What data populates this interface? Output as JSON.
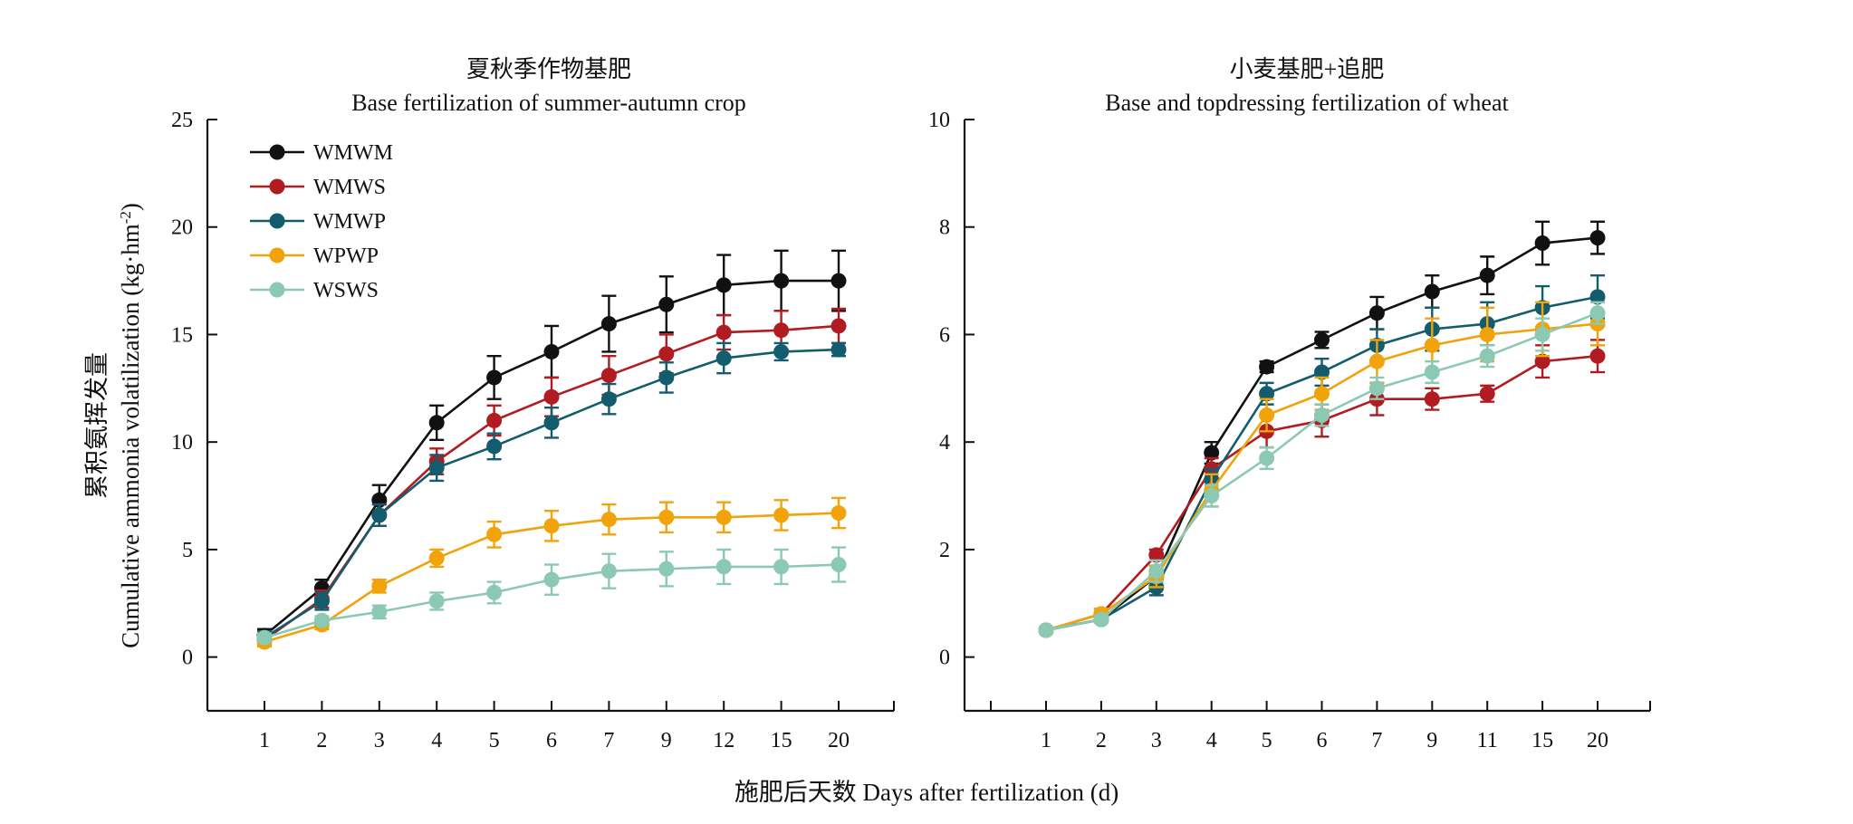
{
  "figure": {
    "xlabel": "施肥后天数 Days after fertilization (d)",
    "ylabel_cn": "累积氨挥发量",
    "ylabel_en_pre": "Cumulative ammonia volatilization (kg·hm",
    "ylabel_en_sup": "-2",
    "ylabel_en_post": ")"
  },
  "chart_data": [
    {
      "type": "line",
      "title_cn": "夏秋季作物基肥",
      "title_en": "Base fertilization of summer-autumn crop",
      "categories": [
        "1",
        "2",
        "3",
        "4",
        "5",
        "6",
        "7",
        "9",
        "12",
        "15",
        "20"
      ],
      "ylim": [
        -2.5,
        25
      ],
      "yticks": [
        0,
        5,
        10,
        15,
        20,
        25
      ],
      "legend": "top-left",
      "series": [
        {
          "name": "WMWM",
          "color": "#111111",
          "values": [
            1.0,
            3.2,
            7.3,
            10.9,
            13.0,
            14.2,
            15.5,
            16.4,
            17.3,
            17.5,
            17.5
          ],
          "errors": [
            0.3,
            0.4,
            0.7,
            0.8,
            1.0,
            1.2,
            1.3,
            1.3,
            1.4,
            1.4,
            1.4
          ]
        },
        {
          "name": "WMWS",
          "color": "#B01C22",
          "values": [
            0.8,
            2.7,
            6.6,
            9.1,
            11.0,
            12.1,
            13.1,
            14.1,
            15.1,
            15.2,
            15.4
          ],
          "errors": [
            0.3,
            0.4,
            0.5,
            0.6,
            0.7,
            0.9,
            0.9,
            0.9,
            0.8,
            0.9,
            0.8
          ]
        },
        {
          "name": "WMWP",
          "color": "#135C6E",
          "values": [
            0.9,
            2.6,
            6.6,
            8.8,
            9.8,
            10.9,
            12.0,
            13.0,
            13.9,
            14.2,
            14.3
          ],
          "errors": [
            0.3,
            0.4,
            0.5,
            0.6,
            0.6,
            0.7,
            0.7,
            0.7,
            0.7,
            0.4,
            0.3
          ]
        },
        {
          "name": "WPWP",
          "color": "#F0A30A",
          "values": [
            0.7,
            1.5,
            3.3,
            4.6,
            5.7,
            6.1,
            6.4,
            6.5,
            6.5,
            6.6,
            6.7
          ],
          "errors": [
            0.2,
            0.2,
            0.3,
            0.4,
            0.6,
            0.7,
            0.7,
            0.7,
            0.7,
            0.7,
            0.7
          ]
        },
        {
          "name": "WSWS",
          "color": "#8CC9B3",
          "values": [
            0.9,
            1.7,
            2.1,
            2.6,
            3.0,
            3.6,
            4.0,
            4.1,
            4.2,
            4.2,
            4.3
          ],
          "errors": [
            0.2,
            0.2,
            0.3,
            0.4,
            0.5,
            0.7,
            0.8,
            0.8,
            0.8,
            0.8,
            0.8
          ]
        }
      ]
    },
    {
      "type": "line",
      "title_cn": "小麦基肥+追肥",
      "title_en": "Base and topdressing fertilization of wheat",
      "categories": [
        "1",
        "2",
        "3",
        "4",
        "5",
        "6",
        "7",
        "9",
        "11",
        "15",
        "20"
      ],
      "ylim": [
        -1,
        10
      ],
      "yticks": [
        0,
        2,
        4,
        6,
        8,
        10
      ],
      "series": [
        {
          "name": "WMWM",
          "color": "#111111",
          "values": [
            0.5,
            0.7,
            1.5,
            3.8,
            5.4,
            5.9,
            6.4,
            6.8,
            7.1,
            7.7,
            7.8
          ],
          "errors": [
            0.05,
            0.05,
            0.2,
            0.2,
            0.1,
            0.15,
            0.3,
            0.3,
            0.35,
            0.4,
            0.3
          ]
        },
        {
          "name": "WMWS",
          "color": "#B01C22",
          "values": [
            0.5,
            0.8,
            1.9,
            3.5,
            4.2,
            4.4,
            4.8,
            4.8,
            4.9,
            5.5,
            5.6
          ],
          "errors": [
            0.05,
            0.1,
            0.1,
            0.2,
            0.3,
            0.3,
            0.3,
            0.2,
            0.15,
            0.3,
            0.3
          ]
        },
        {
          "name": "WMWP",
          "color": "#135C6E",
          "values": [
            0.5,
            0.7,
            1.3,
            3.3,
            4.9,
            5.3,
            5.8,
            6.1,
            6.2,
            6.5,
            6.7
          ],
          "errors": [
            0.05,
            0.05,
            0.15,
            0.2,
            0.2,
            0.25,
            0.3,
            0.4,
            0.4,
            0.4,
            0.4
          ]
        },
        {
          "name": "WPWP",
          "color": "#F0A30A",
          "values": [
            0.5,
            0.8,
            1.5,
            3.1,
            4.5,
            4.9,
            5.5,
            5.8,
            6.0,
            6.1,
            6.2
          ],
          "errors": [
            0.05,
            0.1,
            0.2,
            0.3,
            0.3,
            0.3,
            0.4,
            0.5,
            0.5,
            0.5,
            0.4
          ]
        },
        {
          "name": "WSWS",
          "color": "#8CC9B3",
          "values": [
            0.5,
            0.7,
            1.6,
            3.0,
            3.7,
            4.5,
            5.0,
            5.3,
            5.6,
            6.0,
            6.4
          ],
          "errors": [
            0.05,
            0.05,
            0.2,
            0.2,
            0.2,
            0.2,
            0.2,
            0.2,
            0.2,
            0.3,
            0.2
          ]
        }
      ]
    }
  ]
}
